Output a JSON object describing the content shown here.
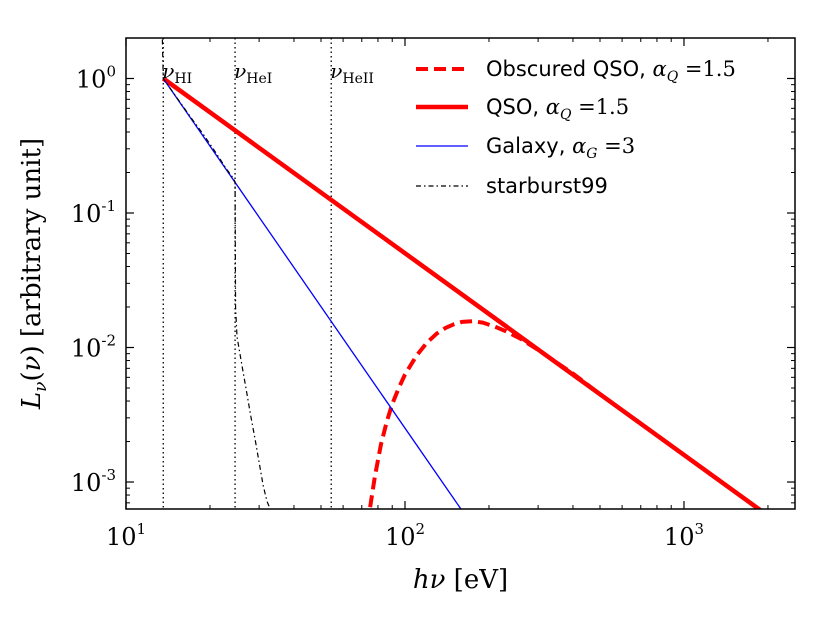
{
  "chart_data": {
    "type": "line",
    "xscale": "log",
    "yscale": "log",
    "xlim": [
      10,
      2500
    ],
    "ylim": [
      0.00063,
      2.0
    ],
    "xlabel": "hν [eV]",
    "ylabel": "L_ν(ν) [arbitrary unit]",
    "x_ticks": [
      {
        "value": 10,
        "base": "10",
        "exp": "1"
      },
      {
        "value": 100,
        "base": "10",
        "exp": "2"
      },
      {
        "value": 1000,
        "base": "10",
        "exp": "3"
      }
    ],
    "y_ticks": [
      {
        "value": 1,
        "base": "10",
        "exp": "0"
      },
      {
        "value": 0.1,
        "base": "10",
        "exp": "-1"
      },
      {
        "value": 0.01,
        "base": "10",
        "exp": "-2"
      },
      {
        "value": 0.001,
        "base": "10",
        "exp": "-3"
      }
    ],
    "vlines": [
      {
        "x": 13.6,
        "label": "ν",
        "sub": "HI"
      },
      {
        "x": 24.6,
        "label": "ν",
        "sub": "HeI"
      },
      {
        "x": 54.4,
        "label": "ν",
        "sub": "HeII"
      }
    ],
    "series": [
      {
        "name": "Obscured QSO",
        "legend_label": "Obscured QSO, ",
        "legend_math": "α",
        "legend_sub": "Q",
        "legend_value": " =1.5",
        "style": "dashed",
        "color": "#ff0000",
        "x": [
          75,
          78,
          82,
          86,
          90,
          95,
          100,
          110,
          120,
          130,
          140,
          150,
          160,
          175,
          190,
          210,
          230,
          260,
          300,
          350,
          400,
          500
        ],
        "y": [
          0.00065,
          0.0011,
          0.0019,
          0.0028,
          0.0038,
          0.005,
          0.0063,
          0.0087,
          0.0109,
          0.0127,
          0.014,
          0.0149,
          0.0155,
          0.0157,
          0.0153,
          0.0143,
          0.0132,
          0.0116,
          0.0096,
          0.0077,
          0.0064,
          0.0045
        ]
      },
      {
        "name": "QSO",
        "legend_label": "QSO, ",
        "legend_math": "α",
        "legend_sub": "Q",
        "legend_value": " =1.5",
        "style": "solid-thick",
        "color": "#ff0000",
        "x": [
          13.6,
          1900
        ],
        "y": [
          1.0,
          0.000607
        ]
      },
      {
        "name": "Galaxy",
        "legend_label": "Galaxy, ",
        "legend_math": "α",
        "legend_sub": "G",
        "legend_value": " =3",
        "style": "solid-thin",
        "color": "#0000ff",
        "x": [
          13.6,
          160
        ],
        "y": [
          1.0,
          0.000614
        ]
      },
      {
        "name": "starburst99",
        "legend_label": "starburst99",
        "style": "dashdot",
        "color": "#000000",
        "x": [
          13.5,
          13.6,
          15,
          17,
          19,
          21,
          23,
          24.3,
          24.6,
          24.7,
          25,
          26,
          27,
          28,
          29,
          30,
          31,
          32,
          33
        ],
        "y": [
          1.95,
          1.0,
          0.75,
          0.52,
          0.38,
          0.28,
          0.21,
          0.18,
          0.17,
          0.02,
          0.012,
          0.0075,
          0.0048,
          0.0031,
          0.0021,
          0.0014,
          0.00095,
          0.00072,
          0.00062
        ]
      }
    ]
  }
}
